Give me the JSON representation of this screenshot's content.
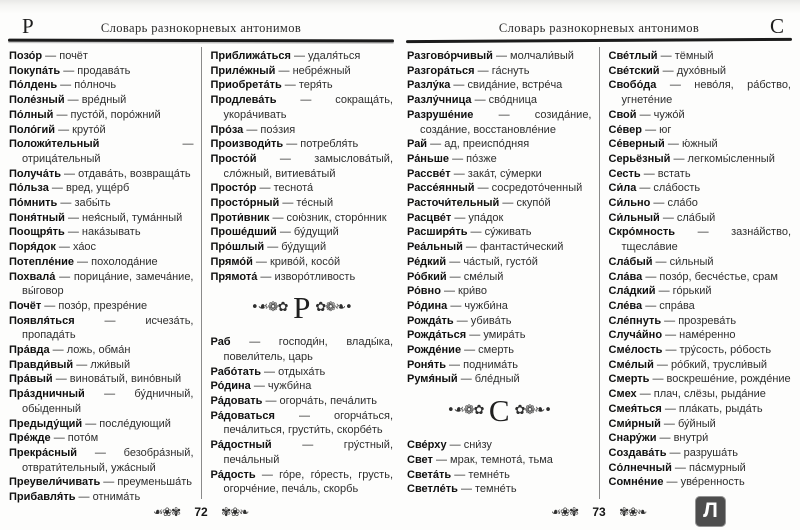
{
  "pages": [
    {
      "corner_letter": "Р",
      "header_title": "Словарь разнокорневых антонимов",
      "page_number": "72",
      "columns": [
        [
          {
            "w": "Позо́р",
            "d": "почёт"
          },
          {
            "w": "Покупа́ть",
            "d": "продава́ть"
          },
          {
            "w": "По́лдень",
            "d": "по́лночь"
          },
          {
            "w": "Поле́зный",
            "d": "вре́дный"
          },
          {
            "w": "По́лный",
            "d": "пусто́й, поро́жний"
          },
          {
            "w": "Поло́гий",
            "d": "круто́й"
          },
          {
            "w": "Положи́тельный",
            "d": "отрица́тельный"
          },
          {
            "w": "Получа́ть",
            "d": "отдава́ть, возвраща́ть"
          },
          {
            "w": "По́льза",
            "d": "вред, уще́рб"
          },
          {
            "w": "По́мнить",
            "d": "забы́ть"
          },
          {
            "w": "Поня́тный",
            "d": "нея́сный, тума́нный"
          },
          {
            "w": "Поощря́ть",
            "d": "нака́зывать"
          },
          {
            "w": "Поря́док",
            "d": "ха́ос"
          },
          {
            "w": "Потепле́ние",
            "d": "похолода́ние"
          },
          {
            "w": "Похвала́",
            "d": "порица́ние, замеча́ние, вы́говор"
          },
          {
            "w": "Почёт",
            "d": "позо́р, презре́ние"
          },
          {
            "w": "Появля́ться",
            "d": "исчеза́ть, пропада́ть"
          },
          {
            "w": "Пра́вда",
            "d": "ложь, обма́н"
          },
          {
            "w": "Правди́вый",
            "d": "лжи́вый"
          },
          {
            "w": "Пра́вый",
            "d": "винова́тый, вино́вный"
          },
          {
            "w": "Пра́здничный",
            "d": "бу́дничный, обы́денный"
          },
          {
            "w": "Предыду́щий",
            "d": "после́дующий"
          },
          {
            "w": "Пре́жде",
            "d": "пото́м"
          },
          {
            "w": "Прекра́сный",
            "d": "безобра́зный, отврати́тельный, ужа́сный"
          },
          {
            "w": "Преувели́чивать",
            "d": "преуменьша́ть"
          },
          {
            "w": "Прибавля́ть",
            "d": "отнима́ть"
          }
        ],
        [
          {
            "w": "Приближа́ться",
            "d": "удаля́ться"
          },
          {
            "w": "Приле́жный",
            "d": "небре́жный"
          },
          {
            "w": "Приобрета́ть",
            "d": "теря́ть"
          },
          {
            "w": "Продлева́ть",
            "d": "сокраща́ть, укора́чивать"
          },
          {
            "w": "Про́за",
            "d": "поэ́зия"
          },
          {
            "w": "Производи́ть",
            "d": "потребля́ть"
          },
          {
            "w": "Просто́й",
            "d": "замыслова́тый, сло́жный, витиева́тый"
          },
          {
            "w": "Просто́р",
            "d": "теснота́"
          },
          {
            "w": "Просто́рный",
            "d": "те́сный"
          },
          {
            "w": "Проти́вник",
            "d": "сою́зник, сторо́нник"
          },
          {
            "w": "Проше́дший",
            "d": "бу́дущий"
          },
          {
            "w": "Про́шлый",
            "d": "бу́дущий"
          },
          {
            "w": "Прямо́й",
            "d": "криво́й, косо́й"
          },
          {
            "w": "Прямота́",
            "d": "изворо́тливость"
          },
          {
            "s": "Р"
          },
          {
            "w": "Раб",
            "d": "господи́н, влады́ка, повели́тель, царь"
          },
          {
            "w": "Рабо́тать",
            "d": "отдыха́ть"
          },
          {
            "w": "Ро́дина",
            "d": "чужби́на"
          },
          {
            "w": "Ра́довать",
            "d": "огорча́ть, печа́лить"
          },
          {
            "w": "Ра́доваться",
            "d": "огорча́ться, печа́литься, грусти́ть, скорбе́ть"
          },
          {
            "w": "Ра́достный",
            "d": "гру́стный, печа́льный"
          },
          {
            "w": "Ра́дость",
            "d": "го́ре, го́ресть, грусть, огорче́ние, печа́ль, скорбь"
          }
        ]
      ]
    },
    {
      "corner_letter": "С",
      "header_title": "Словарь разнокорневых антонимов",
      "page_number": "73",
      "columns": [
        [
          {
            "w": "Разгово́рчивый",
            "d": "молчали́вый"
          },
          {
            "w": "Разгора́ться",
            "d": "га́снуть"
          },
          {
            "w": "Разлу́ка",
            "d": "свида́ние, встре́ча"
          },
          {
            "w": "Разлу́чница",
            "d": "сво́дница"
          },
          {
            "w": "Разруше́ние",
            "d": "созида́ние, созда́ние, восстановле́ние"
          },
          {
            "w": "Рай",
            "d": "ад, преиспо́дняя"
          },
          {
            "w": "Ра́ньше",
            "d": "по́зже"
          },
          {
            "w": "Рассве́т",
            "d": "зака́т, су́мерки"
          },
          {
            "w": "Рассе́янный",
            "d": "сосредото́ченный"
          },
          {
            "w": "Расточи́тельный",
            "d": "скупо́й"
          },
          {
            "w": "Расцве́т",
            "d": "упа́док"
          },
          {
            "w": "Расширя́ть",
            "d": "су́живать"
          },
          {
            "w": "Реа́льный",
            "d": "фантасти́ческий"
          },
          {
            "w": "Ре́дкий",
            "d": "ча́стый, густо́й"
          },
          {
            "w": "Ро́бкий",
            "d": "сме́лый"
          },
          {
            "w": "Ро́вно",
            "d": "кри́во"
          },
          {
            "w": "Ро́дина",
            "d": "чужби́на"
          },
          {
            "w": "Рожда́ть",
            "d": "убива́ть"
          },
          {
            "w": "Рожда́ться",
            "d": "умира́ть"
          },
          {
            "w": "Рожде́ние",
            "d": "смерть"
          },
          {
            "w": "Роня́ть",
            "d": "поднима́ть"
          },
          {
            "w": "Румя́ный",
            "d": "бле́дный"
          },
          {
            "s": "С"
          },
          {
            "w": "Све́рху",
            "d": "сни́зу"
          },
          {
            "w": "Свет",
            "d": "мрак, темнота́, тьма"
          },
          {
            "w": "Света́ть",
            "d": "темне́ть"
          },
          {
            "w": "Светле́ть",
            "d": "темне́ть"
          }
        ],
        [
          {
            "w": "Све́тлый",
            "d": "тёмный"
          },
          {
            "w": "Све́тский",
            "d": "духо́вный"
          },
          {
            "w": "Свобо́да",
            "d": "нево́ля, ра́бство, угнете́ние"
          },
          {
            "w": "Свой",
            "d": "чужо́й"
          },
          {
            "w": "Се́вер",
            "d": "юг"
          },
          {
            "w": "Се́верный",
            "d": "ю́жный"
          },
          {
            "w": "Серьёзный",
            "d": "легкомы́сленный"
          },
          {
            "w": "Сесть",
            "d": "встать"
          },
          {
            "w": "Си́ла",
            "d": "сла́бость"
          },
          {
            "w": "Си́льно",
            "d": "сла́бо"
          },
          {
            "w": "Си́льный",
            "d": "сла́бый"
          },
          {
            "w": "Скро́мность",
            "d": "зазна́йство, тщесла́вие"
          },
          {
            "w": "Сла́бый",
            "d": "си́льный"
          },
          {
            "w": "Сла́ва",
            "d": "позо́р, бесче́стье, срам"
          },
          {
            "w": "Сла́дкий",
            "d": "го́рький"
          },
          {
            "w": "Сле́ва",
            "d": "спра́ва"
          },
          {
            "w": "Сле́пнуть",
            "d": "прозрева́ть"
          },
          {
            "w": "Случа́йно",
            "d": "наме́ренно"
          },
          {
            "w": "Сме́лость",
            "d": "тру́сость, ро́бость"
          },
          {
            "w": "Сме́лый",
            "d": "ро́бкий, трусли́вый"
          },
          {
            "w": "Смерть",
            "d": "воскреше́ние, рожде́ние"
          },
          {
            "w": "Смех",
            "d": "плач, слёзы, рыда́ние"
          },
          {
            "w": "Смея́ться",
            "d": "пла́кать, рыда́ть"
          },
          {
            "w": "Сми́рный",
            "d": "бу́йный"
          },
          {
            "w": "Снару́жи",
            "d": "внутри́"
          },
          {
            "w": "Создава́ть",
            "d": "разруша́ть"
          },
          {
            "w": "Со́лнечный",
            "d": "па́смурный"
          },
          {
            "w": "Сомне́ние",
            "d": "уве́ренность"
          }
        ]
      ]
    }
  ],
  "ornaments": {
    "footer_left": "❧❀✾",
    "footer_right": "✾❀❧",
    "section_left": "•❧❁✿",
    "section_right": "✿❁❧•"
  },
  "separator": " — ",
  "watermark": {
    "letter": "Л",
    "bg_color": "#4d4d4d"
  }
}
